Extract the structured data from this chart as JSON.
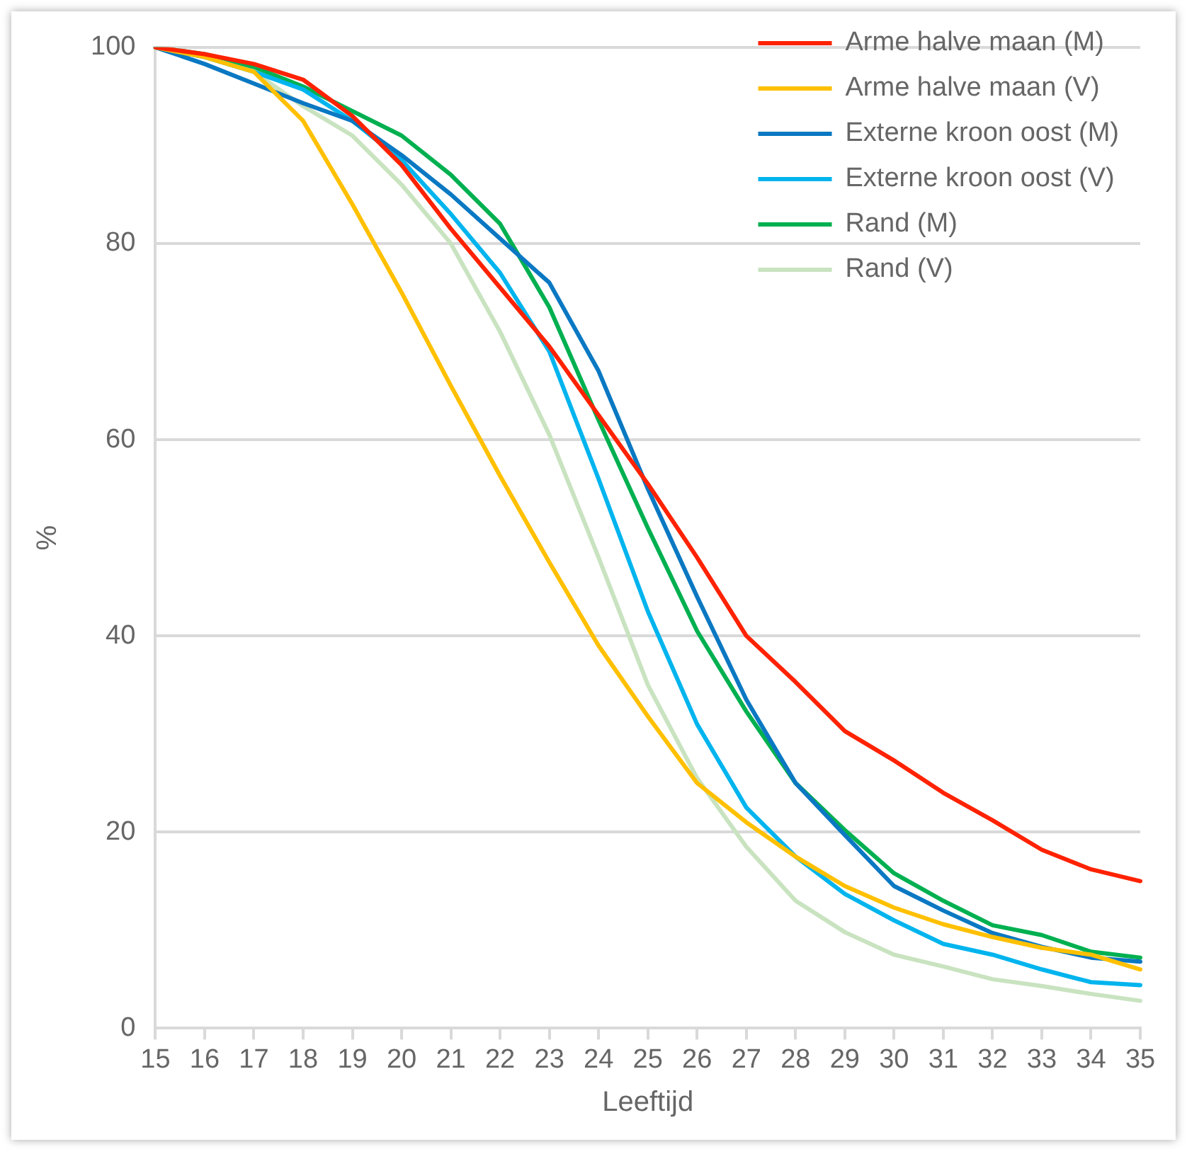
{
  "chart_data": {
    "type": "line",
    "xlabel": "Leeftijd",
    "ylabel": "%",
    "categories": [
      "15",
      "16",
      "17",
      "18",
      "19",
      "20",
      "21",
      "22",
      "23",
      "24",
      "25",
      "26",
      "27",
      "28",
      "29",
      "30",
      "31",
      "32",
      "33",
      "34",
      "35"
    ],
    "ylim": [
      0,
      100
    ],
    "yticks": [
      0,
      20,
      40,
      60,
      80,
      100
    ],
    "grid": "y",
    "legend": "top right",
    "marker": "none",
    "line_style": "solid",
    "series": [
      {
        "name": "Arme halve maan (M)",
        "color": "#ff2200",
        "values": [
          100,
          99.3,
          98.3,
          96.7,
          93,
          88,
          81.5,
          75.5,
          69.5,
          62.5,
          55.5,
          48,
          40,
          35.3,
          30.3,
          27.3,
          24,
          21.2,
          18.2,
          16.2,
          15
        ]
      },
      {
        "name": "Arme halve maan (V)",
        "color": "#ffc000",
        "values": [
          100,
          99,
          97.5,
          92.5,
          84,
          75,
          65.5,
          56.3,
          47.5,
          39,
          31.8,
          25,
          21,
          17.5,
          14.5,
          12.3,
          10.6,
          9.3,
          8.2,
          7.5,
          6
        ]
      },
      {
        "name": "Externe kroon oost (M)",
        "color": "#0a78c2",
        "values": [
          100,
          98.3,
          96.3,
          94.3,
          92.5,
          89,
          85,
          80.5,
          76,
          67,
          55,
          44,
          33.5,
          25,
          19.7,
          14.5,
          12,
          9.7,
          8.3,
          7.2,
          6.8
        ]
      },
      {
        "name": "Externe kroon oost (V)",
        "color": "#00b4ee",
        "values": [
          100,
          99,
          97.5,
          95.7,
          92.5,
          88.5,
          83,
          77,
          69,
          56,
          42.5,
          31,
          22.5,
          17.5,
          13.7,
          11,
          8.6,
          7.5,
          6,
          4.7,
          4.4
        ]
      },
      {
        "name": "Rand (M)",
        "color": "#00b050",
        "values": [
          100,
          99.3,
          98,
          96,
          93.5,
          91,
          87,
          82,
          73.5,
          62,
          51,
          40.5,
          32.3,
          25,
          20.2,
          15.8,
          13,
          10.5,
          9.5,
          7.8,
          7.2
        ]
      },
      {
        "name": "Rand (V)",
        "color": "#c9e3c0",
        "values": [
          100,
          99,
          97.5,
          94,
          91,
          86,
          80,
          71,
          60.5,
          48,
          35,
          25.5,
          18.5,
          13,
          9.8,
          7.5,
          6.3,
          5,
          4.3,
          3.5,
          2.8
        ]
      }
    ]
  }
}
